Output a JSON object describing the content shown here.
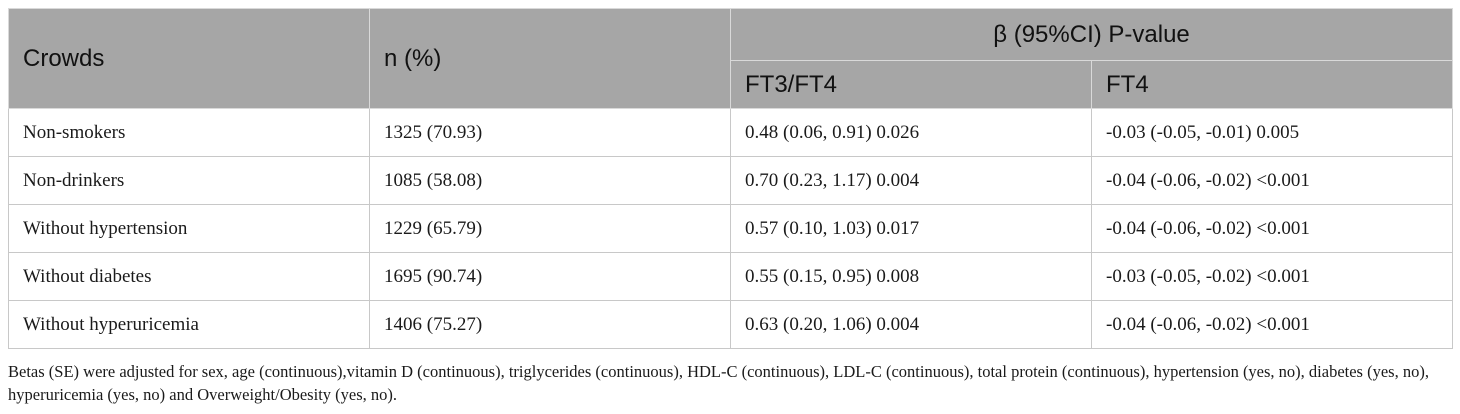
{
  "table": {
    "headers": {
      "crowds": "Crowds",
      "n_pct": "n (%)",
      "beta_group": "β (95%CI) P-value",
      "ft3_ft4": "FT3/FT4",
      "ft4": "FT4"
    },
    "rows": [
      {
        "crowd": "Non-smokers",
        "n": "1325 (70.93)",
        "ft3_ft4": "0.48 (0.06, 0.91) 0.026",
        "ft4": "-0.03 (-0.05, -0.01) 0.005"
      },
      {
        "crowd": "Non-drinkers",
        "n": "1085 (58.08)",
        "ft3_ft4": "0.70 (0.23, 1.17) 0.004",
        "ft4": "-0.04 (-0.06, -0.02) <0.001"
      },
      {
        "crowd": "Without hypertension",
        "n": "1229 (65.79)",
        "ft3_ft4": "0.57 (0.10, 1.03) 0.017",
        "ft4": "-0.04 (-0.06, -0.02) <0.001"
      },
      {
        "crowd": "Without diabetes",
        "n": "1695 (90.74)",
        "ft3_ft4": "0.55 (0.15, 0.95) 0.008",
        "ft4": "-0.03 (-0.05, -0.02) <0.001"
      },
      {
        "crowd": "Without hyperuricemia",
        "n": "1406 (75.27)",
        "ft3_ft4": "0.63 (0.20, 1.06) 0.004",
        "ft4": "-0.04 (-0.06, -0.02) <0.001"
      }
    ]
  },
  "footnote": "Betas (SE) were adjusted for sex, age (continuous),vitamin D (continuous), triglycerides (continuous), HDL-C (continuous), LDL-C (continuous), total protein (continuous), hypertension (yes, no), diabetes (yes, no), hyperuricemia (yes, no) and Overweight/Obesity (yes, no)."
}
